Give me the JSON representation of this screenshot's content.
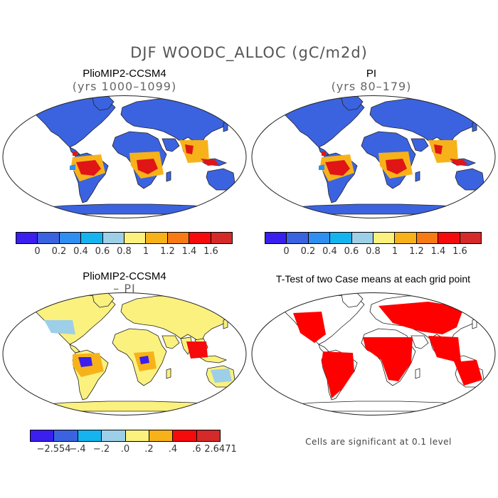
{
  "figure": {
    "title": "DJF WOODC_ALLOC (gC/m2d)"
  },
  "panels": [
    {
      "title": "PlioMIP2-CCSM4",
      "subtitle": "(yrs 1000–1099)",
      "fill": "#3b63e0"
    },
    {
      "title": "PI",
      "subtitle": "(yrs 80–179)",
      "fill": "#3b63e0"
    },
    {
      "title": "PlioMIP2-CCSM4",
      "subtitle": "– PI",
      "fill": "#fbf17e"
    },
    {
      "title": "T-Test of two Case means at each grid point",
      "subtitle": "",
      "fill": "#ffffff",
      "overlay_color": "#ff0000"
    }
  ],
  "colorbars": {
    "top": {
      "colors": [
        "#3a1fee",
        "#3b63e0",
        "#2f8ef0",
        "#16b4ee",
        "#9ecfe8",
        "#fbf17e",
        "#f8b219",
        "#f77a14",
        "#f50b0b",
        "#d42a2a"
      ],
      "labels": [
        "0",
        "0.2",
        "0.4",
        "0.6",
        "0.8",
        "1",
        "1.2",
        "1.4",
        "1.6"
      ]
    },
    "bottom": {
      "colors": [
        "#3a1fee",
        "#3b63e0",
        "#16b4ee",
        "#9ecfe8",
        "#fbf17e",
        "#f8b219",
        "#f50b0b",
        "#d42a2a"
      ],
      "labels": [
        "−2.554",
        "−.4",
        "−.2",
        ".0",
        ".2",
        ".4",
        ".6",
        "2.6471"
      ]
    }
  },
  "note": "Cells are significant at 0.1 level"
}
